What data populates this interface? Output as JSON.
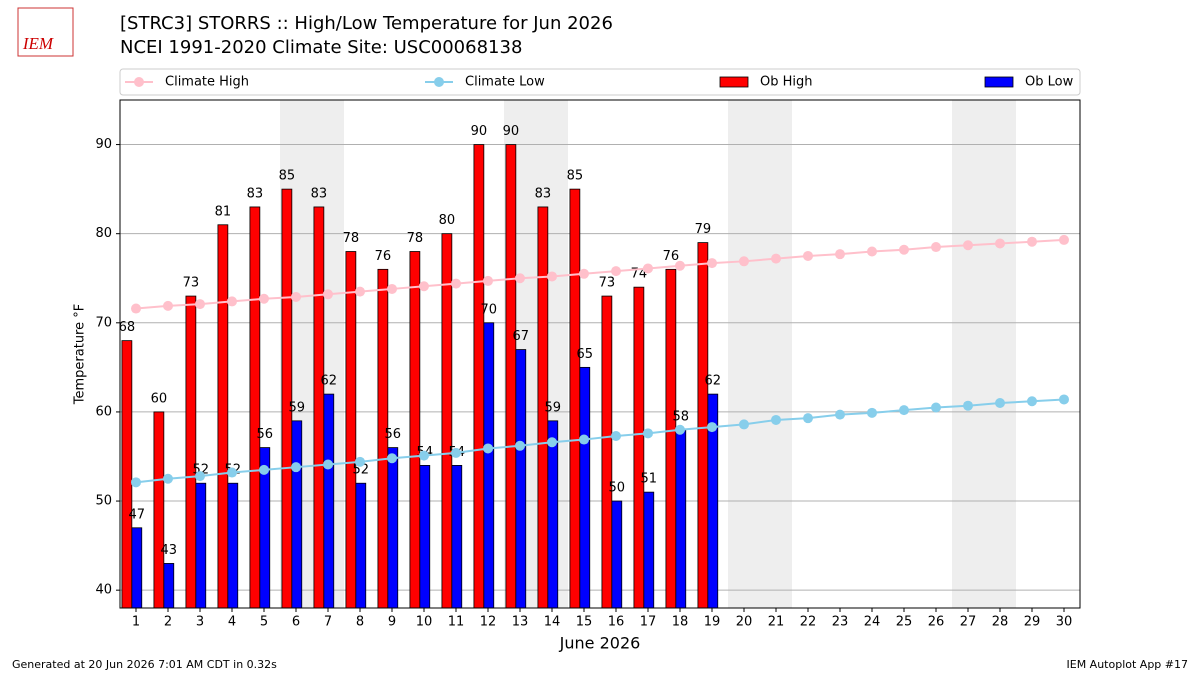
{
  "logo_text": "IEM",
  "footer_left": "Generated at 20 Jun 2026 7:01 AM CDT in 0.32s",
  "footer_right": "IEM Autoplot App #17",
  "chart_data": {
    "type": "bar",
    "title": "[STRC3] STORRS :: High/Low Temperature for Jun 2026",
    "subtitle": "NCEI 1991-2020 Climate Site: USC00068138",
    "x_label": "June 2026",
    "y_label": "Temperature °F",
    "x": [
      1,
      2,
      3,
      4,
      5,
      6,
      7,
      8,
      9,
      10,
      11,
      12,
      13,
      14,
      15,
      16,
      17,
      18,
      19,
      20,
      21,
      22,
      23,
      24,
      25,
      26,
      27,
      28,
      29,
      30
    ],
    "xlim": [
      0.5,
      30.5
    ],
    "xticks": [
      1,
      2,
      3,
      4,
      5,
      6,
      7,
      8,
      9,
      10,
      11,
      12,
      13,
      14,
      15,
      16,
      17,
      18,
      19,
      20,
      21,
      22,
      23,
      24,
      25,
      26,
      27,
      28,
      29,
      30
    ],
    "ylim": [
      38,
      95
    ],
    "yticks": [
      40,
      50,
      60,
      70,
      80,
      90
    ],
    "grid": true,
    "shaded_days": [
      6,
      7,
      13,
      14,
      20,
      21,
      27,
      28
    ],
    "series": [
      {
        "name": "Climate High",
        "type": "line",
        "color": "#ffc0cb",
        "values": [
          71.6,
          71.9,
          72.1,
          72.4,
          72.7,
          72.9,
          73.2,
          73.5,
          73.8,
          74.1,
          74.4,
          74.7,
          75.0,
          75.2,
          75.5,
          75.8,
          76.1,
          76.4,
          76.7,
          76.9,
          77.2,
          77.5,
          77.7,
          78.0,
          78.2,
          78.5,
          78.7,
          78.9,
          79.1,
          79.3
        ]
      },
      {
        "name": "Climate Low",
        "type": "line",
        "color": "#87ceeb",
        "values": [
          52.1,
          52.5,
          52.8,
          53.2,
          53.5,
          53.8,
          54.1,
          54.4,
          54.8,
          55.1,
          55.4,
          55.9,
          56.2,
          56.6,
          56.9,
          57.3,
          57.6,
          58.0,
          58.3,
          58.6,
          59.1,
          59.3,
          59.7,
          59.9,
          60.2,
          60.5,
          60.7,
          61.0,
          61.2,
          61.4
        ]
      },
      {
        "name": "Ob High",
        "type": "bar",
        "color": "#ff0000",
        "values": [
          68,
          60,
          73,
          81,
          83,
          85,
          83,
          78,
          76,
          78,
          80,
          90,
          90,
          83,
          85,
          73,
          74,
          76,
          79,
          null,
          null,
          null,
          null,
          null,
          null,
          null,
          null,
          null,
          null,
          null
        ]
      },
      {
        "name": "Ob Low",
        "type": "bar",
        "color": "#0000ff",
        "values": [
          47,
          43,
          52,
          52,
          56,
          59,
          62,
          52,
          56,
          54,
          54,
          70,
          67,
          59,
          65,
          50,
          51,
          58,
          62,
          null,
          null,
          null,
          null,
          null,
          null,
          null,
          null,
          null,
          null,
          null
        ]
      }
    ]
  }
}
